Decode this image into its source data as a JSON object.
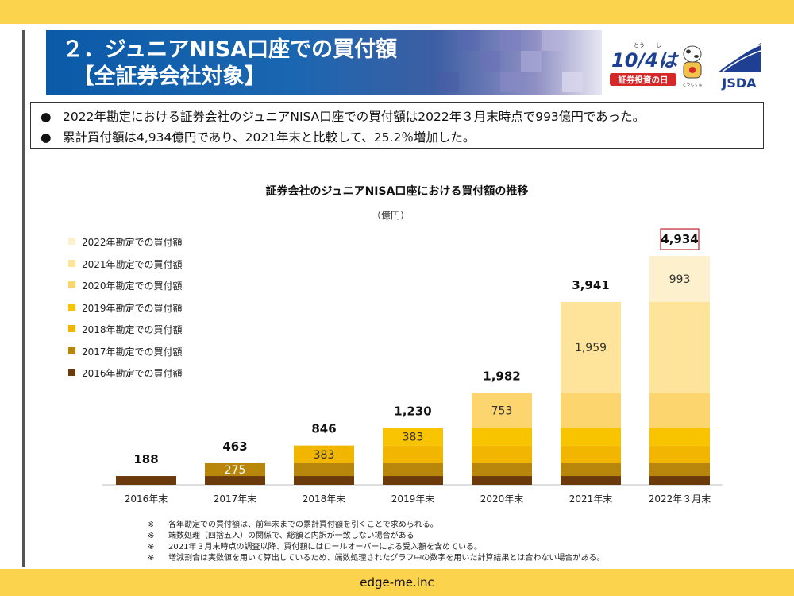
{
  "header": {
    "title": "２．ジュニアNISA口座での買付額\n　【全証券会社対象】",
    "logo_1004_ruby": "とう　　し",
    "logo_1004_main": "10/4は",
    "logo_1004_sub": "証券投資の日",
    "mascot_caption": "とうしくん",
    "logo_jsda": "JSDA"
  },
  "summary": {
    "bullet": "●",
    "lines": [
      "2022年勘定における証券会社のジュニアNISA口座での買付額は2022年３月末時点で993億円であった。",
      "累計買付額は4,934億円であり、2021年末と比較して、25.2％増加した。"
    ]
  },
  "colors": {
    "band": "#fcd34d",
    "layers": [
      "#6b3a0b",
      "#b8860b",
      "#f2b600",
      "#f8c400",
      "#fcd56e",
      "#fde49a",
      "#fdf0cc"
    ],
    "highlight_border": "#c0202a"
  },
  "chart_data": {
    "type": "bar",
    "stacked": true,
    "title": "証券会社のジュニアNISA口座における買付額の推移",
    "ylabel": "（億円）",
    "categories": [
      "2016年末",
      "2017年末",
      "2018年末",
      "2019年末",
      "2020年末",
      "2021年末",
      "2022年３月末"
    ],
    "series": [
      {
        "name": "2016年勘定での買付額",
        "values": [
          188,
          188,
          188,
          188,
          188,
          188,
          188
        ]
      },
      {
        "name": "2017年勘定での買付額",
        "values": [
          0,
          275,
          275,
          275,
          275,
          275,
          275
        ]
      },
      {
        "name": "2018年勘定での買付額",
        "values": [
          0,
          0,
          383,
          383,
          383,
          383,
          383
        ]
      },
      {
        "name": "2019年勘定での買付額",
        "values": [
          0,
          0,
          0,
          383,
          383,
          383,
          383
        ]
      },
      {
        "name": "2020年勘定での買付額",
        "values": [
          0,
          0,
          0,
          0,
          753,
          753,
          753
        ]
      },
      {
        "name": "2021年勘定での買付額",
        "values": [
          0,
          0,
          0,
          0,
          0,
          1959,
          1959
        ]
      },
      {
        "name": "2022年勘定での買付額",
        "values": [
          0,
          0,
          0,
          0,
          0,
          0,
          993
        ]
      }
    ],
    "segment_labels": [
      {
        "category": 1,
        "series": 1,
        "text": "275"
      },
      {
        "category": 2,
        "series": 2,
        "text": "383"
      },
      {
        "category": 3,
        "series": 3,
        "text": "383"
      },
      {
        "category": 4,
        "series": 4,
        "text": "753"
      },
      {
        "category": 5,
        "series": 5,
        "text": "1,959"
      },
      {
        "category": 6,
        "series": 6,
        "text": "993"
      }
    ],
    "totals": [
      "188",
      "463",
      "846",
      "1,230",
      "1,982",
      "3,941",
      "4,934"
    ],
    "highlighted_total_index": 6,
    "ylim": [
      0,
      5500
    ],
    "legend_position": "left"
  },
  "footnotes": {
    "mark": "※",
    "lines": [
      "各年勘定での買付額は、前年末までの累計買付額を引くことで求められる。",
      "端数処理（四捨五入）の関係で、総額と内訳が一致しない場合がある",
      "2021年３月末時点の調査以降、買付額にはロールオーバーによる受入額を含めている。",
      "増減割合は実数値を用いて算出しているため、端数処理されたグラフ中の数字を用いた計算結果とは合わない場合がある。"
    ]
  },
  "footer": {
    "text": "edge-me.inc"
  }
}
